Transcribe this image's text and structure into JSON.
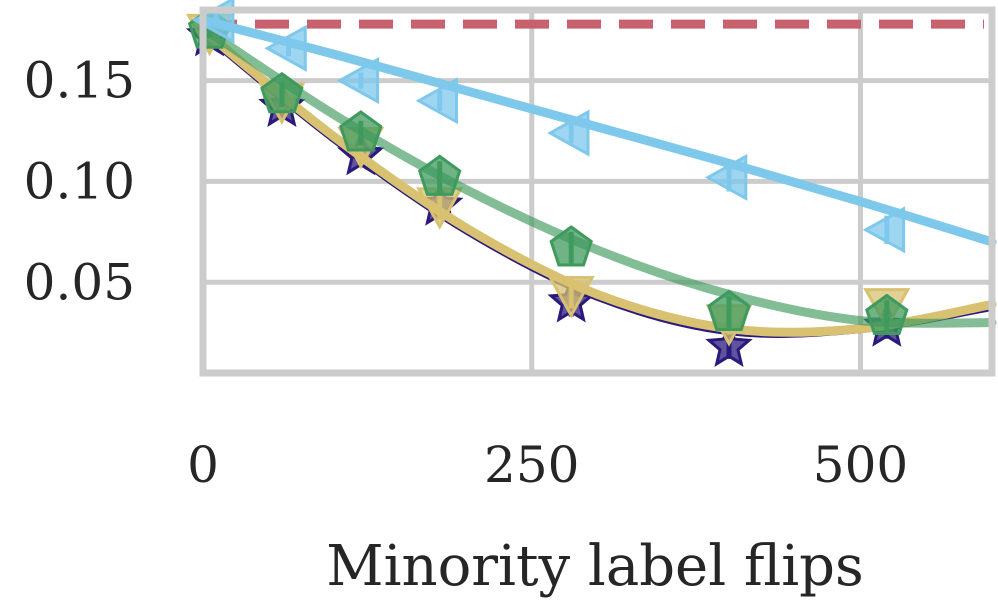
{
  "chart_data": {
    "type": "line",
    "title": "",
    "xlabel": "Minority label flips",
    "ylabel": "",
    "xlim": [
      0,
      600
    ],
    "ylim": [
      0.005,
      0.185
    ],
    "xticks": [
      0,
      250,
      500
    ],
    "xtick_labels": [
      "0",
      "250",
      "500"
    ],
    "yticks": [
      0.05,
      0.1,
      0.15
    ],
    "ytick_labels": [
      "0.05",
      "0.10",
      "0.15"
    ],
    "grid": true,
    "legend": "none",
    "reference_line": {
      "y": 0.178,
      "color": "#c8606e",
      "style": "dashed"
    },
    "series": [
      {
        "name": "series-light-blue",
        "color": "#7ec8ec",
        "marker": "triangle-left",
        "points": [
          {
            "x": 10,
            "y": 0.18,
            "err": 0.004
          },
          {
            "x": 65,
            "y": 0.166,
            "err": 0.004
          },
          {
            "x": 120,
            "y": 0.15,
            "err": 0.004
          },
          {
            "x": 180,
            "y": 0.14,
            "err": 0.005
          },
          {
            "x": 280,
            "y": 0.124,
            "err": 0.005
          },
          {
            "x": 400,
            "y": 0.102,
            "err": 0.007
          },
          {
            "x": 520,
            "y": 0.076,
            "err": 0.007
          }
        ],
        "fit": [
          [
            0,
            0.18
          ],
          [
            100,
            0.163
          ],
          [
            200,
            0.145
          ],
          [
            300,
            0.127
          ],
          [
            400,
            0.109
          ],
          [
            500,
            0.09
          ],
          [
            600,
            0.07
          ]
        ]
      },
      {
        "name": "series-green",
        "color": "#3f9a5e",
        "marker": "pentagon",
        "points": [
          {
            "x": 5,
            "y": 0.175,
            "err": 0.004
          },
          {
            "x": 60,
            "y": 0.143,
            "err": 0.006
          },
          {
            "x": 120,
            "y": 0.124,
            "err": 0.006
          },
          {
            "x": 180,
            "y": 0.102,
            "err": 0.008
          },
          {
            "x": 280,
            "y": 0.067,
            "err": 0.008
          },
          {
            "x": 400,
            "y": 0.035,
            "err": 0.008
          },
          {
            "x": 520,
            "y": 0.033,
            "err": 0.008
          }
        ],
        "fit": [
          [
            0,
            0.176
          ],
          [
            100,
            0.133
          ],
          [
            200,
            0.096
          ],
          [
            300,
            0.066
          ],
          [
            400,
            0.044
          ],
          [
            500,
            0.031
          ],
          [
            600,
            0.03
          ]
        ]
      },
      {
        "name": "series-dark-purple",
        "color": "#2b1a7c",
        "marker": "star",
        "points": [
          {
            "x": 5,
            "y": 0.172,
            "err": 0.004
          },
          {
            "x": 60,
            "y": 0.137,
            "err": 0.005
          },
          {
            "x": 120,
            "y": 0.113,
            "err": 0.005
          },
          {
            "x": 180,
            "y": 0.088,
            "err": 0.006
          },
          {
            "x": 280,
            "y": 0.04,
            "err": 0.007
          },
          {
            "x": 400,
            "y": 0.018,
            "err": 0.006
          },
          {
            "x": 520,
            "y": 0.028,
            "err": 0.006
          }
        ],
        "fit": [
          [
            0,
            0.173
          ],
          [
            100,
            0.12
          ],
          [
            200,
            0.075
          ],
          [
            300,
            0.042
          ],
          [
            400,
            0.025
          ],
          [
            500,
            0.026
          ],
          [
            600,
            0.037
          ]
        ]
      },
      {
        "name": "series-yellow",
        "color": "#d8c170",
        "marker": "triangle-down",
        "points": [
          {
            "x": 5,
            "y": 0.174,
            "err": 0.004
          },
          {
            "x": 60,
            "y": 0.14,
            "err": 0.006
          },
          {
            "x": 120,
            "y": 0.118,
            "err": 0.006
          },
          {
            "x": 180,
            "y": 0.088,
            "err": 0.007
          },
          {
            "x": 280,
            "y": 0.044,
            "err": 0.007
          },
          {
            "x": 400,
            "y": 0.03,
            "err": 0.006
          },
          {
            "x": 520,
            "y": 0.038,
            "err": 0.006
          }
        ],
        "fit": [
          [
            0,
            0.175
          ],
          [
            100,
            0.122
          ],
          [
            200,
            0.077
          ],
          [
            300,
            0.044
          ],
          [
            400,
            0.027
          ],
          [
            500,
            0.027
          ],
          [
            600,
            0.039
          ]
        ]
      }
    ]
  }
}
